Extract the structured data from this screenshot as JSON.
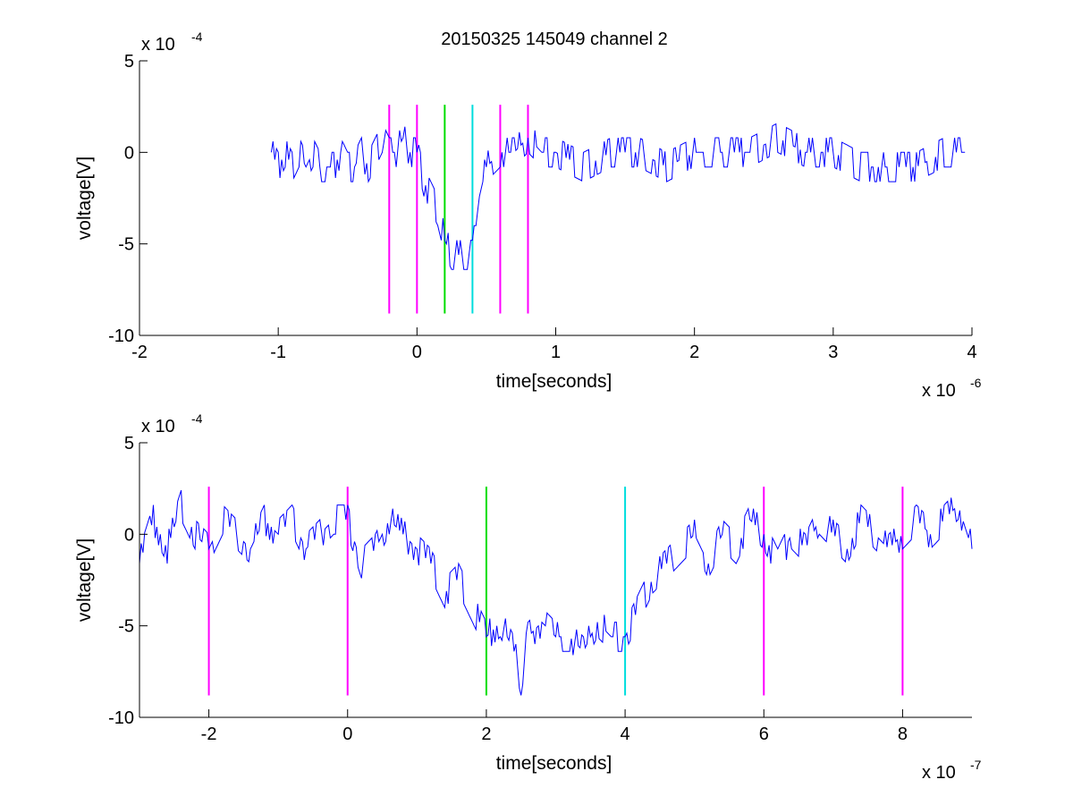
{
  "figure": {
    "title": "20150325 145049 channel 2",
    "background": "#ffffff"
  },
  "colors": {
    "signal": "#0000ff",
    "magenta_marker": "#ff00ff",
    "green_marker": "#00dd00",
    "cyan_marker": "#00dddd",
    "axes": "#000000"
  },
  "chart_data": [
    {
      "type": "line",
      "title": "20150325 145049 channel 2",
      "xlabel": "time[seconds]",
      "ylabel": "voltage[V]",
      "x_exponent_label": "x 10",
      "x_exponent": "-6",
      "y_exponent_label": "x 10",
      "y_exponent": "-4",
      "x_scale": 1e-06,
      "y_scale": 0.0001,
      "xlim": [
        -2e-06,
        4e-06
      ],
      "ylim": [
        -0.001,
        0.0005
      ],
      "xticks": [
        -2e-06,
        -1e-06,
        0,
        1e-06,
        2e-06,
        3e-06,
        4e-06
      ],
      "xtick_labels": [
        "-2",
        "-1",
        "0",
        "1",
        "2",
        "3",
        "4"
      ],
      "yticks": [
        -0.001,
        -0.0005,
        0,
        0.0005
      ],
      "ytick_labels": [
        "-10",
        "-5",
        "0",
        "5"
      ],
      "grid": false,
      "series": [
        {
          "x": [
            -1.05e-06,
            -1e-06,
            -9.5e-07,
            -9e-07,
            -8.5e-07,
            -8e-07,
            -7.5e-07,
            -7e-07,
            -6.5e-07,
            -6e-07,
            -5.5e-07,
            -5e-07,
            -4.5e-07,
            -4e-07,
            -3.5e-07,
            -3e-07,
            -2.5e-07,
            -2e-07,
            -1.5e-07,
            -1e-07,
            -5e-08,
            0,
            5e-08,
            1e-07,
            1.5e-07,
            2e-07,
            2.5e-07,
            3e-07,
            3.5e-07,
            4e-07,
            4.5e-07,
            5e-07,
            6e-07,
            7e-07,
            8e-07,
            9e-07,
            1e-06,
            1.2e-06,
            1.4e-06,
            1.6e-06,
            1.8e-06,
            2e-06,
            2.2e-06,
            2.4e-06,
            2.6e-06,
            2.8e-06,
            3e-06,
            3.2e-06,
            3.4e-06,
            3.6e-06,
            3.8e-06,
            3.95e-06
          ],
          "y": [
            0,
            -8e-05,
            0,
            -8e-05,
            0,
            -8e-05,
            0,
            -8e-05,
            -8e-05,
            -8e-05,
            0,
            -8e-05,
            -8e-05,
            0,
            -8e-05,
            0,
            8e-05,
            0,
            0,
            8e-05,
            0,
            0,
            -0.00016,
            -0.00024,
            -0.00032,
            -0.00048,
            -0.00056,
            -0.00056,
            -0.00056,
            -0.00056,
            -0.00024,
            -8e-05,
            0,
            0,
            8e-05,
            0,
            0,
            -8e-05,
            0,
            0,
            -8e-05,
            0,
            0,
            0,
            8e-05,
            0,
            0,
            -8e-05,
            -8e-05,
            -8e-05,
            0,
            0
          ]
        }
      ],
      "markers": [
        {
          "x": -2e-07,
          "color": "magenta"
        },
        {
          "x": 0,
          "color": "magenta"
        },
        {
          "x": 2e-07,
          "color": "green"
        },
        {
          "x": 4e-07,
          "color": "cyan"
        },
        {
          "x": 6e-07,
          "color": "magenta"
        },
        {
          "x": 8e-07,
          "color": "magenta"
        }
      ],
      "marker_ylim": [
        -0.00088,
        0.00026
      ]
    },
    {
      "type": "line",
      "xlabel": "time[seconds]",
      "ylabel": "voltage[V]",
      "x_exponent_label": "x 10",
      "x_exponent": "-7",
      "y_exponent_label": "x 10",
      "y_exponent": "-4",
      "x_scale": 1e-07,
      "y_scale": 0.0001,
      "xlim": [
        -3e-07,
        9e-07
      ],
      "ylim": [
        -0.001,
        0.0005
      ],
      "xticks": [
        -2e-07,
        0,
        2e-07,
        4e-07,
        6e-07,
        8e-07
      ],
      "xtick_labels": [
        "-2",
        "0",
        "2",
        "4",
        "6",
        "8"
      ],
      "yticks": [
        -0.001,
        -0.0005,
        0,
        0.0005
      ],
      "ytick_labels": [
        "-10",
        "-5",
        "0",
        "5"
      ],
      "grid": false,
      "series": [
        {
          "x": [
            -3e-07,
            -2.8e-07,
            -2.6e-07,
            -2.4e-07,
            -2.2e-07,
            -2e-07,
            -1.8e-07,
            -1.6e-07,
            -1.4e-07,
            -1.2e-07,
            -1e-07,
            -8e-08,
            -6e-08,
            -4e-08,
            -2e-08,
            0,
            2e-08,
            4e-08,
            6e-08,
            8e-08,
            1e-07,
            1.2e-07,
            1.4e-07,
            1.6e-07,
            1.8e-07,
            2e-07,
            2.2e-07,
            2.4e-07,
            2.5e-07,
            2.6e-07,
            2.8e-07,
            3e-07,
            3.2e-07,
            3.4e-07,
            3.6e-07,
            3.8e-07,
            4e-07,
            4.2e-07,
            4.4e-07,
            4.6e-07,
            4.8e-07,
            5e-07,
            5.2e-07,
            5.4e-07,
            5.6e-07,
            5.8e-07,
            6e-07,
            6.2e-07,
            6.4e-07,
            6.6e-07,
            6.8e-07,
            7e-07,
            7.2e-07,
            7.4e-07,
            7.6e-07,
            7.8e-07,
            8e-07,
            8.2e-07,
            8.4e-07,
            8.6e-07,
            8.8e-07,
            9e-07
          ],
          "y": [
            -0.00016,
            8e-05,
            -8e-05,
            0.00016,
            0,
            -8e-05,
            8e-05,
            0,
            -8e-05,
            8e-05,
            0,
            8e-05,
            -8e-05,
            0,
            8e-05,
            8e-05,
            -0.00016,
            -8e-05,
            8e-05,
            0,
            -8e-05,
            -0.00016,
            -0.00032,
            -0.00024,
            -0.0004,
            -0.00056,
            -0.00048,
            -0.00064,
            -0.0008,
            -0.00056,
            -0.00048,
            -0.00056,
            -0.00056,
            -0.00064,
            -0.00048,
            -0.00056,
            -0.00056,
            -0.0004,
            -0.00024,
            -0.00016,
            -8e-05,
            0,
            -0.00016,
            0,
            -8e-05,
            8e-05,
            0,
            -0.00016,
            0,
            -8e-05,
            8e-05,
            0,
            -8e-05,
            8e-05,
            0,
            -8e-05,
            0,
            8e-05,
            0,
            8e-05,
            0.00016,
            -8e-05
          ]
        }
      ],
      "markers": [
        {
          "x": -2e-07,
          "color": "magenta"
        },
        {
          "x": 0,
          "color": "magenta"
        },
        {
          "x": 2e-07,
          "color": "green"
        },
        {
          "x": 4e-07,
          "color": "cyan"
        },
        {
          "x": 6e-07,
          "color": "magenta"
        },
        {
          "x": 8e-07,
          "color": "magenta"
        }
      ],
      "marker_ylim": [
        -0.00088,
        0.00026
      ]
    }
  ]
}
